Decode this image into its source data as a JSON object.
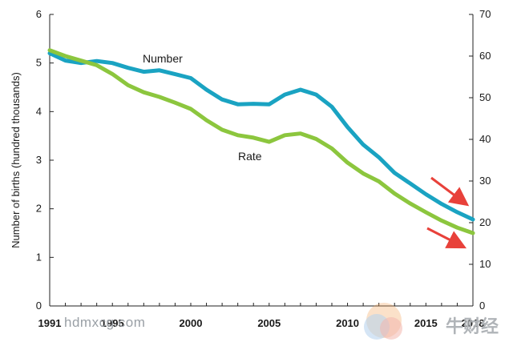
{
  "chart_data": {
    "type": "line",
    "title": "",
    "ylabel": "Number of births (hundred thousands)",
    "y2label": "",
    "xlim": [
      1991,
      2018
    ],
    "ylim": [
      0,
      6
    ],
    "y2lim": [
      0,
      70
    ],
    "x_ticks": [
      1991,
      1995,
      2000,
      2005,
      2010,
      2015,
      2018
    ],
    "y_ticks": [
      0,
      1,
      2,
      3,
      4,
      5,
      6
    ],
    "y2_ticks": [
      0,
      10,
      20,
      30,
      40,
      50,
      60,
      70
    ],
    "grid": false,
    "series": [
      {
        "name": "Number",
        "axis": "left",
        "color": "#1aa3c2",
        "x": [
          1991,
          1992,
          1993,
          1994,
          1995,
          1996,
          1997,
          1998,
          1999,
          2000,
          2001,
          2002,
          2003,
          2004,
          2005,
          2006,
          2007,
          2008,
          2009,
          2010,
          2011,
          2012,
          2013,
          2014,
          2015,
          2016,
          2017,
          2018
        ],
        "values": [
          5.2,
          5.05,
          5.0,
          5.04,
          5.0,
          4.9,
          4.82,
          4.85,
          4.77,
          4.69,
          4.45,
          4.25,
          4.15,
          4.16,
          4.15,
          4.35,
          4.45,
          4.35,
          4.1,
          3.68,
          3.32,
          3.06,
          2.74,
          2.52,
          2.3,
          2.1,
          1.93,
          1.78
        ]
      },
      {
        "name": "Rate",
        "axis": "right",
        "color": "#8cc63e",
        "x": [
          1991,
          1992,
          1993,
          1994,
          1995,
          1996,
          1997,
          1998,
          1999,
          2000,
          2001,
          2002,
          2003,
          2004,
          2005,
          2006,
          2007,
          2008,
          2009,
          2010,
          2011,
          2012,
          2013,
          2014,
          2015,
          2016,
          2017,
          2018
        ],
        "values": [
          61.4,
          60.0,
          58.9,
          57.8,
          55.7,
          53.0,
          51.3,
          50.2,
          48.8,
          47.3,
          44.6,
          42.3,
          41.0,
          40.4,
          39.4,
          41.0,
          41.4,
          40.1,
          37.8,
          34.4,
          31.8,
          29.9,
          27.0,
          24.6,
          22.5,
          20.5,
          18.8,
          17.5
        ]
      }
    ],
    "annotations": {
      "number_label": "Number",
      "rate_label": "Rate",
      "arrow_color": "#e8413a"
    }
  },
  "watermark": {
    "text": "hdmxcg.com",
    "logo_text": "牛财经"
  }
}
